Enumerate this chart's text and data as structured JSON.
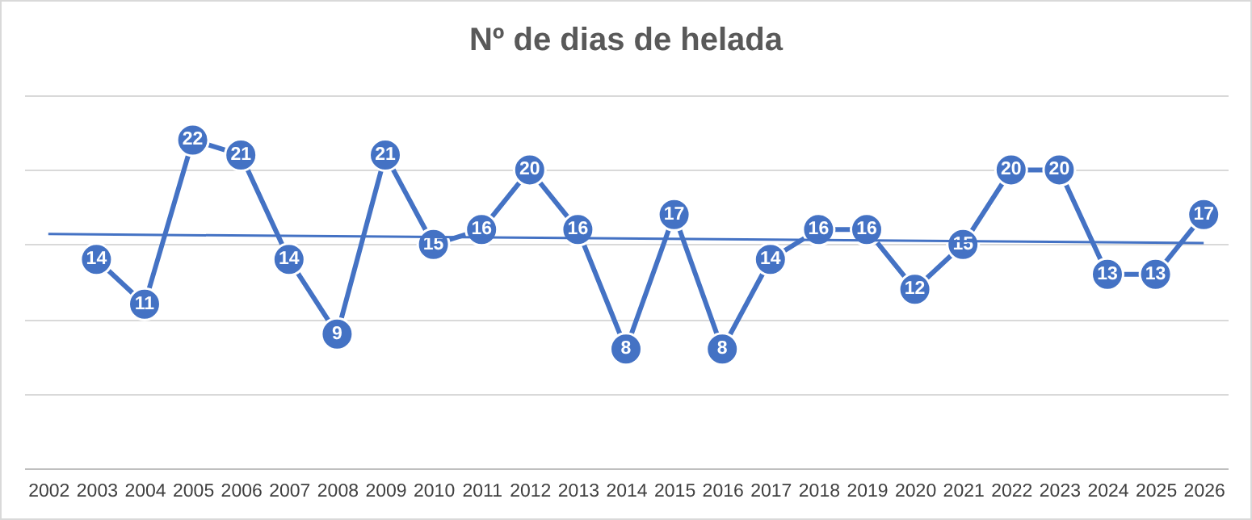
{
  "chart_data": {
    "type": "line",
    "title": "Nº de dias de helada",
    "categories": [
      "2002",
      "2003",
      "2004",
      "2005",
      "2006",
      "2007",
      "2008",
      "2009",
      "2010",
      "2011",
      "2012",
      "2013",
      "2014",
      "2015",
      "2016",
      "2017",
      "2018",
      "2019",
      "2020",
      "2021",
      "2022",
      "2023",
      "2024",
      "2025",
      "2026"
    ],
    "series": [
      {
        "color": "#4472c4",
        "marker": "circle",
        "values": [
          null,
          14,
          11,
          22,
          21,
          14,
          9,
          21,
          15,
          16,
          20,
          16,
          8,
          17,
          8,
          14,
          16,
          16,
          12,
          15,
          20,
          20,
          13,
          13,
          17
        ],
        "value_labels": [
          null,
          "14",
          "11",
          "22",
          "21",
          "14",
          "9",
          "21",
          "15",
          "16",
          "20",
          "16",
          "8",
          "17",
          "8",
          "14",
          "16",
          "16",
          "12",
          "15",
          "20",
          "20",
          "13",
          "13",
          "17"
        ]
      },
      {
        "type": "line",
        "color": "#4472c4",
        "marker": "none",
        "values": [
          15.7,
          null,
          null,
          null,
          null,
          null,
          null,
          null,
          null,
          null,
          null,
          null,
          null,
          null,
          null,
          null,
          null,
          null,
          null,
          null,
          null,
          null,
          null,
          null,
          15.1
        ]
      }
    ],
    "ylim": [
      0,
      25
    ],
    "yticks": [
      {
        "value": 0,
        "label": null
      },
      {
        "value": 5,
        "label": null
      },
      {
        "value": 10,
        "label": null
      },
      {
        "value": 15,
        "label": null
      },
      {
        "value": 20,
        "label": null
      },
      {
        "value": 25,
        "label": null
      }
    ],
    "tick_labels": "x",
    "grid": "y"
  }
}
